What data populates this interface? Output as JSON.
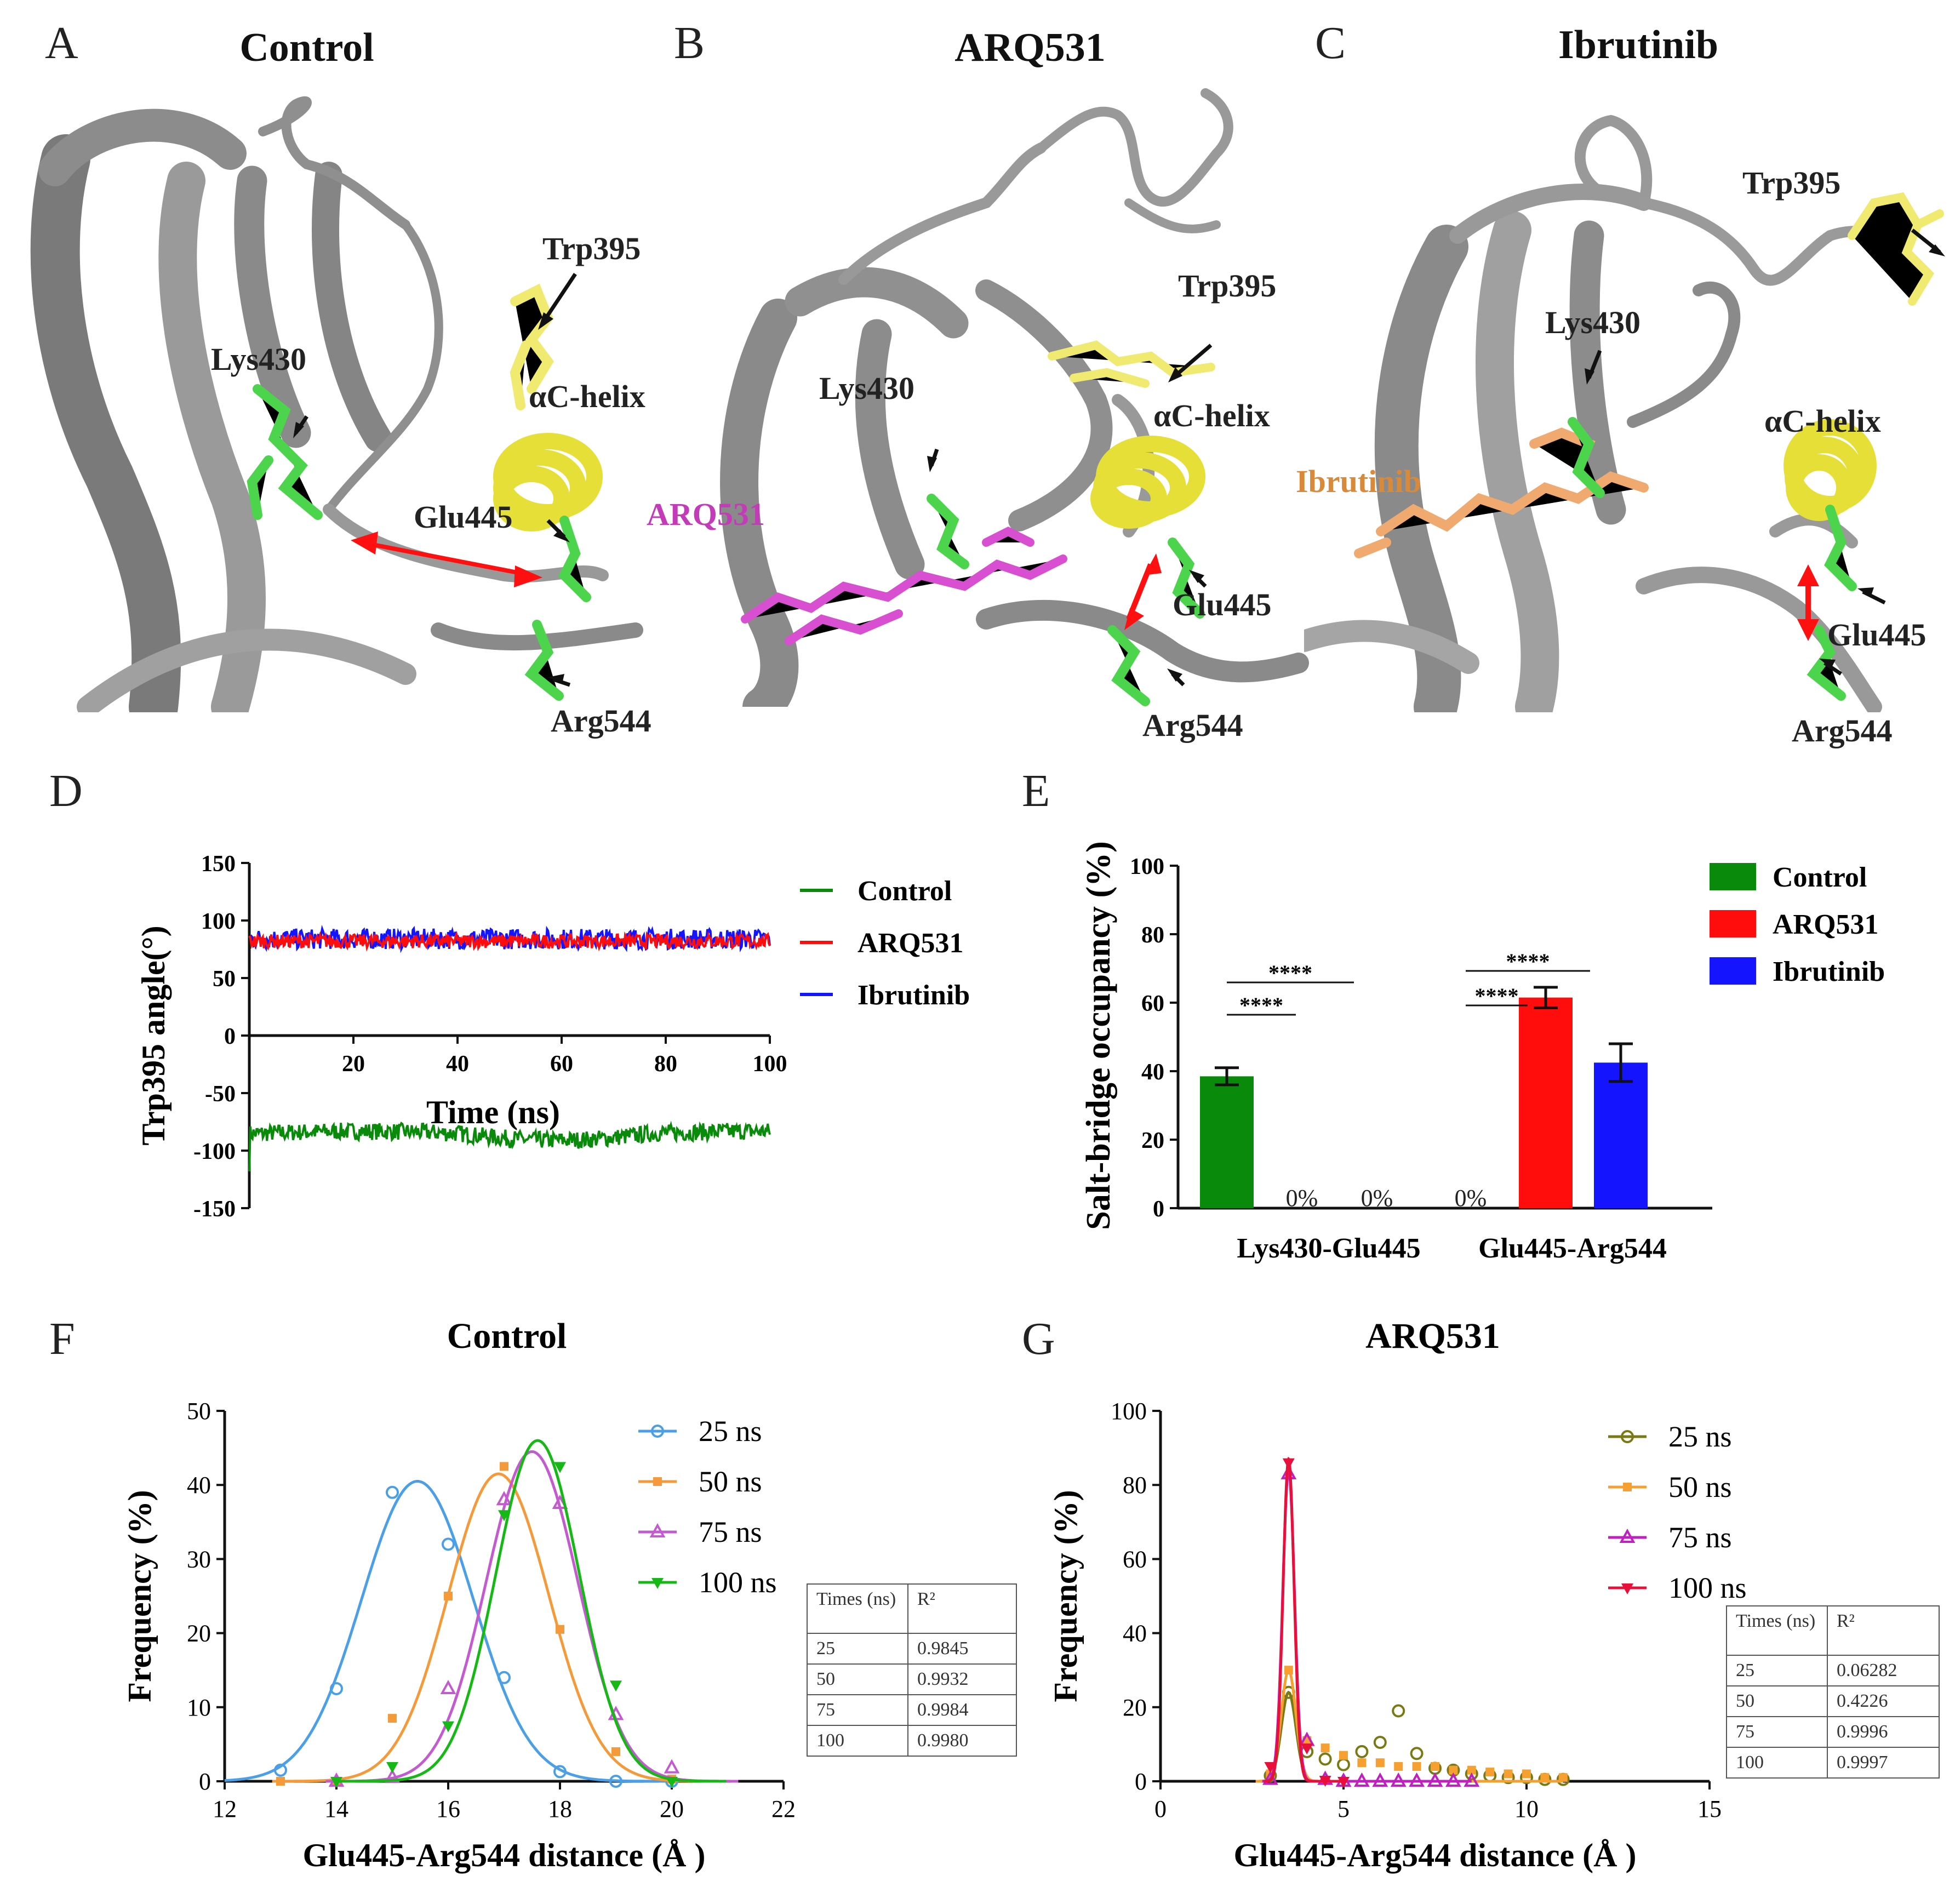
{
  "panels": {
    "A": {
      "letter": "A",
      "title": "Control",
      "labels": {
        "trp": "Trp395",
        "lys": "Lys430",
        "helix": "αC-helix",
        "glu": "Glu445",
        "arg": "Arg544"
      }
    },
    "B": {
      "letter": "B",
      "title": "ARQ531",
      "labels": {
        "trp": "Trp395",
        "lys": "Lys430",
        "helix": "αC-helix",
        "glu": "Glu445",
        "arg": "Arg544",
        "ligand": "ARQ531"
      }
    },
    "C": {
      "letter": "C",
      "title": "Ibrutinib",
      "labels": {
        "trp": "Trp395",
        "lys": "Lys430",
        "helix": "αC-helix",
        "glu": "Glu445",
        "arg": "Arg544",
        "ligand": "Ibrutinib"
      }
    },
    "D": {
      "letter": "D"
    },
    "E": {
      "letter": "E"
    },
    "F": {
      "letter": "F"
    },
    "G": {
      "letter": "G"
    }
  },
  "colors": {
    "control": "#0a8a0a",
    "arq": "#ff0d0d",
    "ibr": "#1414ff",
    "c25": "#4a9fe6",
    "c50": "#f59a3a",
    "c75": "#c45ad0",
    "c100": "#16b816",
    "g25": "#7a7a14",
    "g50": "#f5a030",
    "g75": "#c020c0",
    "g100": "#e8103a"
  },
  "chart_data": [
    {
      "id": "D",
      "type": "line",
      "xlabel": "Time (ns)",
      "ylabel": "Trp395 angle(°)",
      "xlim": [
        0,
        100
      ],
      "ylim": [
        -150,
        150
      ],
      "xticks": [
        "20",
        "40",
        "60",
        "80",
        "100"
      ],
      "yticks": [
        "150",
        "100",
        "50",
        "0",
        "-50",
        "-100",
        "-150"
      ],
      "series": [
        {
          "name": "Control",
          "mean": -85,
          "range": [
            -100,
            -75
          ]
        },
        {
          "name": "ARQ531",
          "mean": 82,
          "range": [
            72,
            92
          ]
        },
        {
          "name": "Ibrutinib",
          "mean": 84,
          "range": [
            70,
            100
          ]
        }
      ]
    },
    {
      "id": "E",
      "type": "bar",
      "ylabel": "Salt-bridge occupancy (%)",
      "ylim": [
        0,
        100
      ],
      "yticks": [
        "0",
        "20",
        "40",
        "60",
        "80",
        "100"
      ],
      "categories": [
        "Lys430-Glu445",
        "Glu445-Arg544"
      ],
      "series": [
        {
          "name": "Control",
          "values": [
            38.5,
            0
          ],
          "errors": [
            2.5,
            0
          ]
        },
        {
          "name": "ARQ531",
          "values": [
            0,
            61.5
          ],
          "errors": [
            0,
            3
          ]
        },
        {
          "name": "Ibrutinib",
          "values": [
            0,
            42.5
          ],
          "errors": [
            0,
            5.5
          ]
        }
      ],
      "zero_label": "0%",
      "sig_label": "****"
    },
    {
      "id": "F",
      "type": "scatter",
      "title": "Control",
      "xlabel": "Glu445-Arg544 distance (Å )",
      "ylabel": "Frequency (%)",
      "xlim": [
        12,
        22
      ],
      "ylim": [
        0,
        50
      ],
      "xticks": [
        "12",
        "14",
        "16",
        "18",
        "20",
        "22"
      ],
      "yticks": [
        "0",
        "10",
        "20",
        "30",
        "40",
        "50"
      ],
      "series": [
        {
          "name": "25 ns",
          "x": [
            13,
            14,
            15,
            16,
            17,
            18,
            19,
            20
          ],
          "y": [
            1.5,
            12.5,
            39,
            32,
            14,
            1.3,
            0,
            0
          ],
          "fit": {
            "amp": 40.5,
            "mu": 15.45,
            "sigma": 1.0
          }
        },
        {
          "name": "50 ns",
          "x": [
            13,
            14,
            15,
            16,
            17,
            18,
            19,
            20
          ],
          "y": [
            0,
            0,
            8.5,
            25,
            42.5,
            20.5,
            4,
            0.3
          ],
          "fit": {
            "amp": 41.5,
            "mu": 16.9,
            "sigma": 0.9
          }
        },
        {
          "name": "75 ns",
          "x": [
            14,
            15,
            16,
            17,
            18,
            19,
            20
          ],
          "y": [
            0,
            0.5,
            12.5,
            38,
            37.5,
            9,
            1.8
          ],
          "fit": {
            "amp": 44.5,
            "mu": 17.5,
            "sigma": 0.82
          }
        },
        {
          "name": "100 ns",
          "x": [
            14,
            15,
            16,
            17,
            18,
            19,
            20
          ],
          "y": [
            0,
            2,
            7.5,
            36,
            42.5,
            13,
            0
          ],
          "fit": {
            "amp": 46,
            "mu": 17.6,
            "sigma": 0.75
          }
        }
      ],
      "table": {
        "headers": [
          "Times (ns)",
          "R²"
        ],
        "rows": [
          [
            "25",
            "0.9845"
          ],
          [
            "50",
            "0.9932"
          ],
          [
            "75",
            "0.9984"
          ],
          [
            "100",
            "0.9980"
          ]
        ]
      }
    },
    {
      "id": "G",
      "type": "scatter",
      "title": "ARQ531",
      "xlabel": "Glu445-Arg544 distance (Å )",
      "ylabel": "Frequency (%)",
      "xlim": [
        0,
        15
      ],
      "ylim": [
        0,
        100
      ],
      "xticks": [
        "0",
        "5",
        "10",
        "15"
      ],
      "yticks": [
        "0",
        "20",
        "40",
        "60",
        "80",
        "100"
      ],
      "series": [
        {
          "name": "25 ns",
          "x": [
            3,
            3.5,
            4,
            4.5,
            5,
            5.5,
            6,
            6.5,
            7,
            7.5,
            8,
            8.5,
            9,
            9.5,
            10,
            10.5,
            11
          ],
          "y": [
            1.5,
            24,
            8,
            6,
            4.5,
            8,
            10.5,
            19,
            7.5,
            3.5,
            3,
            2,
            1.5,
            1,
            1,
            0.5,
            0.5
          ],
          "fit": {
            "amp": 24,
            "mu": 3.5,
            "sigma": 0.2
          }
        },
        {
          "name": "50 ns",
          "x": [
            3,
            3.5,
            4,
            4.5,
            5,
            5.5,
            6,
            6.5,
            7,
            7.5,
            8,
            8.5,
            9,
            9.5,
            10,
            10.5,
            11
          ],
          "y": [
            2,
            30,
            11,
            9,
            7,
            5,
            5,
            4,
            4,
            4,
            3,
            3,
            2.5,
            2,
            2,
            1,
            1
          ],
          "fit": {
            "amp": 30,
            "mu": 3.5,
            "sigma": 0.2
          }
        },
        {
          "name": "75 ns",
          "x": [
            3,
            3.5,
            4,
            4.5,
            5,
            5.5,
            6,
            6.5,
            7,
            7.5,
            8,
            8.5
          ],
          "y": [
            0.5,
            83,
            11,
            0.5,
            0,
            0,
            0,
            0,
            0,
            0,
            0,
            0
          ],
          "fit": {
            "amp": 84,
            "mu": 3.5,
            "sigma": 0.16
          }
        },
        {
          "name": "100 ns",
          "x": [
            3,
            3.5,
            4,
            4.5,
            5
          ],
          "y": [
            4,
            86,
            9,
            0.3,
            0
          ],
          "fit": {
            "amp": 87,
            "mu": 3.5,
            "sigma": 0.15
          }
        }
      ],
      "table": {
        "headers": [
          "Times (ns)",
          "R²"
        ],
        "rows": [
          [
            "25",
            "0.06282"
          ],
          [
            "50",
            "0.4226"
          ],
          [
            "75",
            "0.9996"
          ],
          [
            "100",
            "0.9997"
          ]
        ]
      }
    }
  ]
}
